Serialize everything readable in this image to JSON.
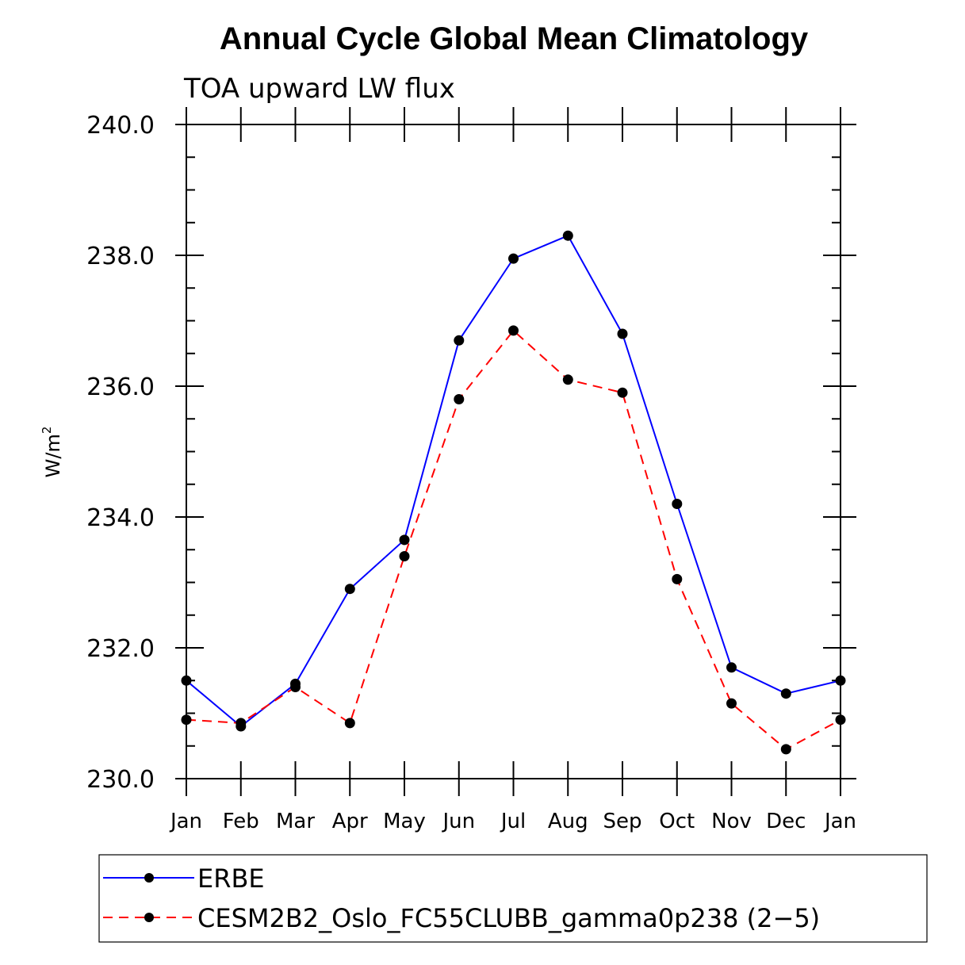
{
  "chart_data": {
    "type": "line",
    "title": "Annual Cycle Global Mean Climatology",
    "subtitle": "TOA upward LW flux",
    "ylabel": "W/m",
    "ylabel_superscript": "2",
    "xlabel": "",
    "ylim": [
      230,
      240
    ],
    "y_major_ticks": [
      230,
      232,
      234,
      236,
      238,
      240
    ],
    "y_tick_labels": [
      "230.0",
      "232.0",
      "234.0",
      "236.0",
      "238.0",
      "240.0"
    ],
    "categories": [
      "Jan",
      "Feb",
      "Mar",
      "Apr",
      "May",
      "Jun",
      "Jul",
      "Aug",
      "Sep",
      "Oct",
      "Nov",
      "Dec",
      "Jan"
    ],
    "series": [
      {
        "name": "ERBE",
        "color": "#0000ff",
        "dash": "solid",
        "values": [
          231.5,
          230.8,
          231.45,
          232.9,
          233.65,
          236.7,
          237.95,
          238.3,
          236.8,
          234.2,
          231.7,
          231.3,
          231.5
        ]
      },
      {
        "name": "CESM2B2_Oslo_FC55CLUBB_gamma0p238 (2−5)",
        "color": "#ff0000",
        "dash": "dashed",
        "values": [
          230.9,
          230.85,
          231.4,
          230.85,
          233.4,
          235.8,
          236.85,
          236.1,
          235.9,
          233.05,
          231.15,
          230.45,
          230.9
        ]
      }
    ],
    "grid": false,
    "legend_position": "bottom"
  }
}
